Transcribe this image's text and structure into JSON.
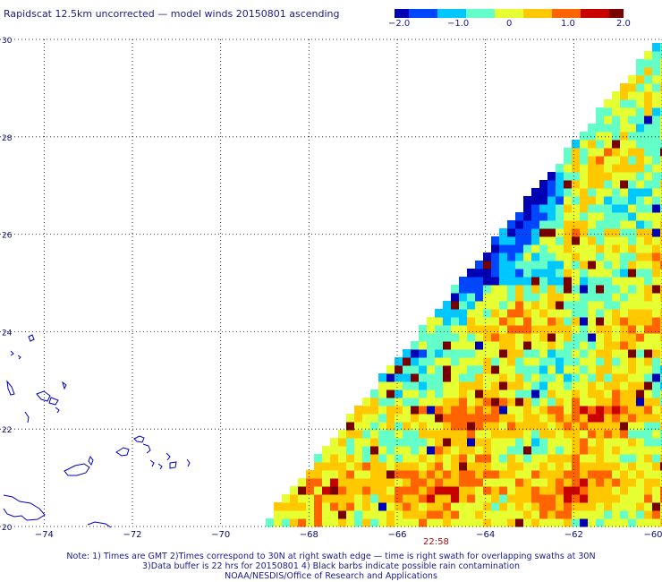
{
  "title": "Rapidscat 12.5km uncorrected — model winds 20150801 ascending",
  "colorbar": {
    "ticks": [
      "−2.0",
      "−1.0",
      "0",
      "1.0",
      "2.0"
    ],
    "range": [
      -2.0,
      2.0
    ],
    "colors": [
      "#0000b4",
      "#0046ff",
      "#00c8ff",
      "#64ffc8",
      "#e6ff32",
      "#ffc800",
      "#ff6400",
      "#c80000",
      "#780000"
    ]
  },
  "map": {
    "lon_labels": [
      "−74",
      "−72",
      "−70",
      "−68",
      "−66",
      "−64",
      "−62",
      "−60"
    ],
    "lon_values": [
      -74,
      -72,
      -70,
      -68,
      -66,
      -64,
      -62,
      -60
    ],
    "lat_labels": [
      "20",
      "22",
      "24",
      "26",
      "28",
      "30"
    ],
    "lat_values": [
      20,
      22,
      24,
      26,
      28,
      30
    ],
    "lon_range": [
      -75,
      -60
    ],
    "lat_range": [
      20,
      30
    ],
    "swath_edge": [
      [
        -69.0,
        20.0
      ],
      [
        -60.0,
        30.0
      ]
    ],
    "grid": "dotted",
    "coastline_color": "#0000c8"
  },
  "time_label": "22:58",
  "notes": [
    "Note: 1) Times are GMT 2)Times correspond to 30N at right swath edge — time is right swath for overlapping swaths at 30N",
    "3)Data buffer is 22 hrs for 20150801 4) Black barbs indicate possible rain contamination",
    "NOAA/NESDIS/Office of Research and Applications"
  ]
}
